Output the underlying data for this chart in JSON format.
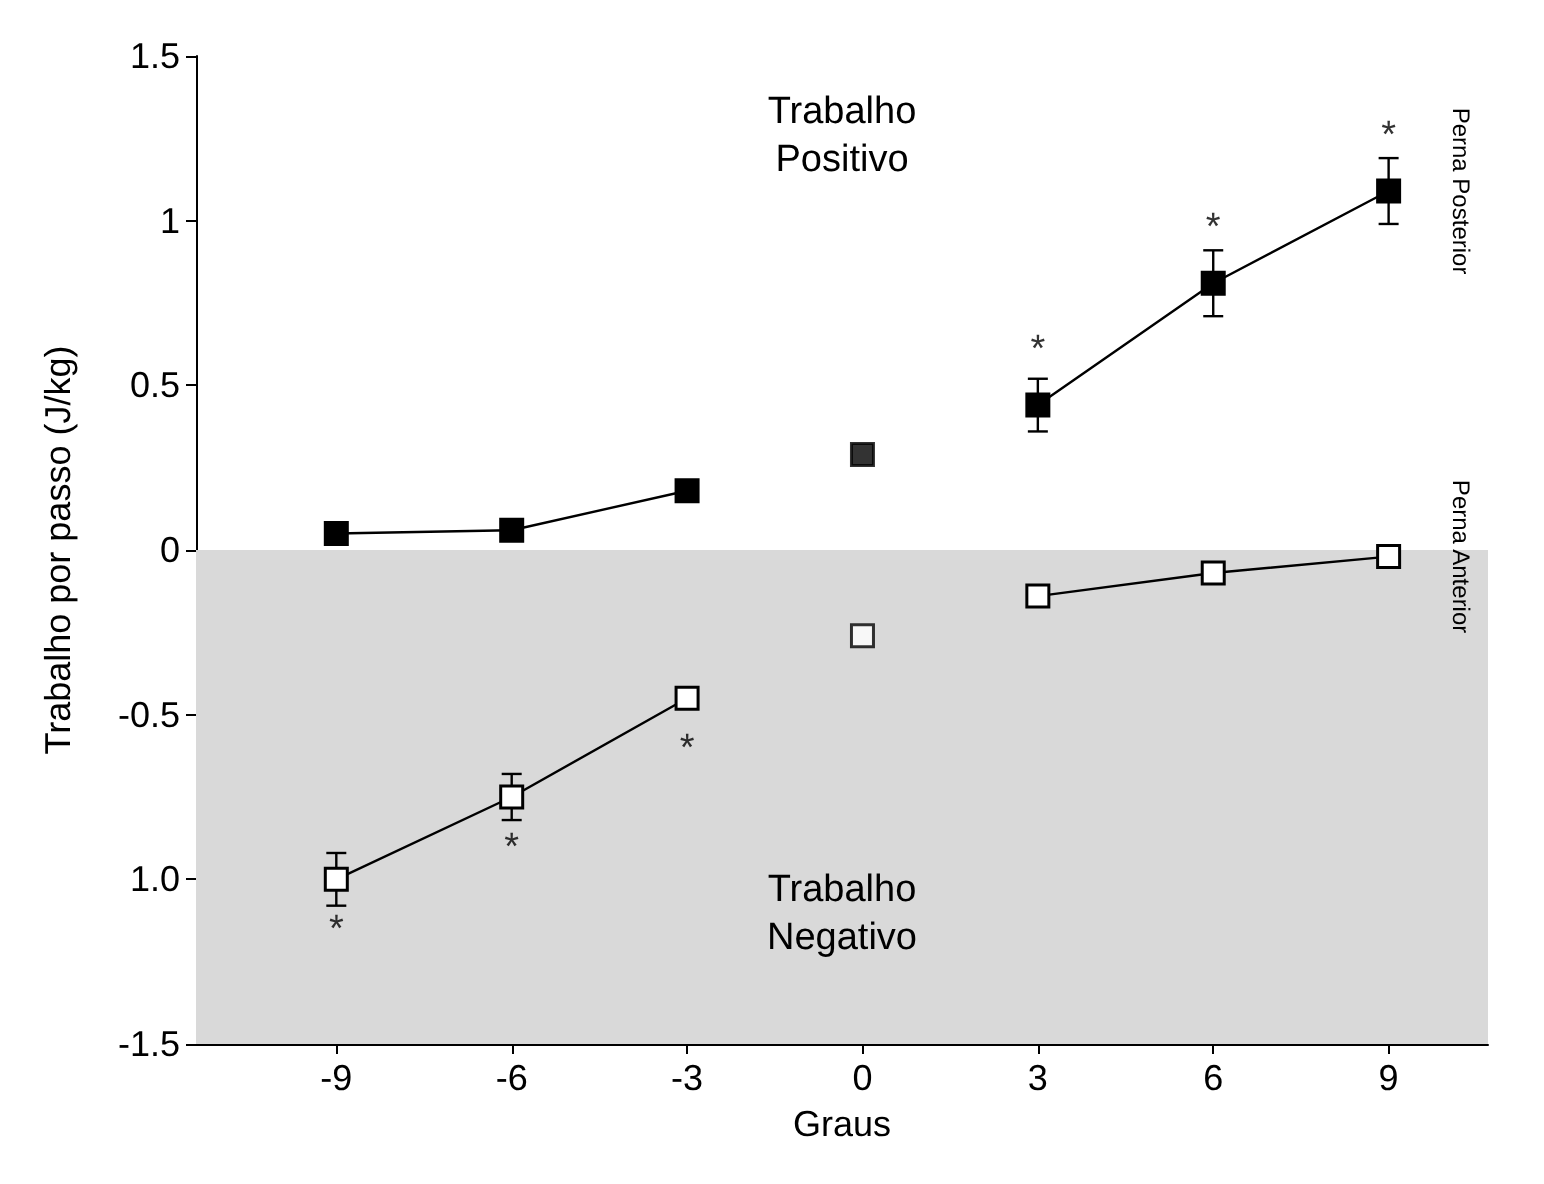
{
  "chart_data": {
    "type": "line",
    "xlabel": "Graus",
    "ylabel": "Trabalho por passo (J/kg)",
    "xlim": [
      -11.4,
      10.7
    ],
    "xticks": [
      -9,
      -6,
      -3,
      0,
      3,
      6,
      9
    ],
    "ylim": [
      -1.5,
      1.5
    ],
    "yticks": [
      -1.5,
      {
        "value": -1,
        "label": "1.0"
      },
      -0.5,
      0,
      0.5,
      1.0,
      1.5
    ],
    "grid": false,
    "legend": false,
    "line_style": "solid",
    "marker": "square",
    "bands": [
      {
        "axis": "y",
        "from": -1.5,
        "to": 0,
        "color": "#d9d9d9"
      }
    ],
    "series": [
      {
        "name": "Perna Posterior",
        "color": "#000000",
        "x": [
          -9,
          -6,
          -3,
          0,
          3,
          6,
          9
        ],
        "values": [
          0.05,
          0.06,
          0.18,
          null,
          0.44,
          0.81,
          1.09
        ],
        "errors": [
          null,
          null,
          null,
          null,
          0.08,
          0.1,
          0.1
        ]
      },
      {
        "color": "#000000",
        "type": "scatter",
        "x": [
          0
        ],
        "values": [
          0.29
        ]
      },
      {
        "name": "Perna Anterior",
        "color": "#ffffff",
        "x": [
          -9,
          -6,
          -3,
          0,
          3,
          6,
          9
        ],
        "values": [
          -1.0,
          -0.75,
          -0.45,
          null,
          -0.14,
          -0.07,
          -0.02
        ],
        "errors": [
          0.08,
          0.07,
          0.03,
          null,
          0.03,
          null,
          null
        ]
      },
      {
        "color": "#ffffff",
        "type": "scatter",
        "x": [
          0
        ],
        "values": [
          -0.26
        ]
      }
    ],
    "annotations": [
      "Trabalho\nPositivo",
      "Trabalho\nNegativo",
      {
        "text": "*",
        "x": 3,
        "y": 0.44
      },
      {
        "text": "*",
        "x": 6,
        "y": 0.81
      },
      {
        "text": "*",
        "x": 9,
        "y": 1.09
      },
      {
        "text": "*",
        "x": -9,
        "y": -1.0
      },
      {
        "text": "*",
        "x": -6,
        "y": -0.75
      },
      {
        "text": "*",
        "x": -3,
        "y": -0.45
      }
    ]
  }
}
